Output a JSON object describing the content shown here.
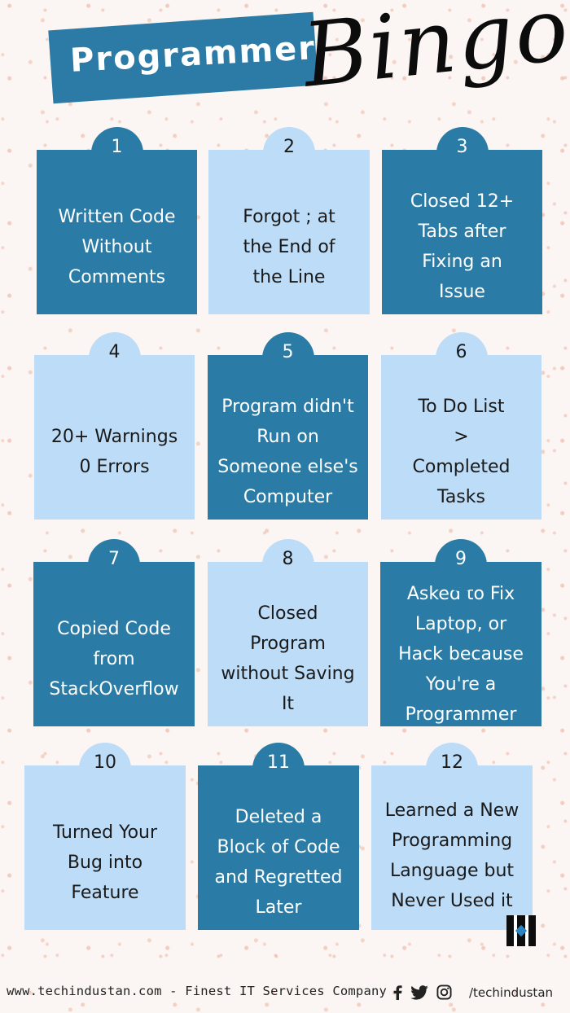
{
  "header": {
    "title": "Programmer",
    "script": "Bingo"
  },
  "cards": [
    {
      "number": "1",
      "text": "Written Code Without Comments"
    },
    {
      "number": "2",
      "text": "Forgot ; at the End of the Line"
    },
    {
      "number": "3",
      "text": "Closed 12+ Tabs after Fixing an Issue"
    },
    {
      "number": "4",
      "text": "20+ Warnings 0 Errors"
    },
    {
      "number": "5",
      "text": "Program didn't Run on Someone else's Computer"
    },
    {
      "number": "6",
      "text": "To Do List > Completed Tasks"
    },
    {
      "number": "7",
      "text": "Copied Code from StackOverflow"
    },
    {
      "number": "8",
      "text": "Closed Program without Saving It"
    },
    {
      "number": "9",
      "text": "Asked to Fix Laptop, or Hack because You're a Programmer"
    },
    {
      "number": "10",
      "text": "Turned Your Bug into Feature"
    },
    {
      "number": "11",
      "text": "Deleted a Block of Code and Regretted Later"
    },
    {
      "number": "12",
      "text": "Learned a New Programming Language but Never Used it"
    }
  ],
  "footer": {
    "site": "www.techindustan.com - Finest IT Services Company",
    "handle": "/techindustan",
    "icons": [
      "facebook-icon",
      "twitter-icon",
      "instagram-icon"
    ]
  },
  "colors": {
    "dark_blue": "#2a7ca6",
    "light_blue": "#bcdcf7",
    "background": "#fbf6f3",
    "speckle": "#ebaa96"
  }
}
